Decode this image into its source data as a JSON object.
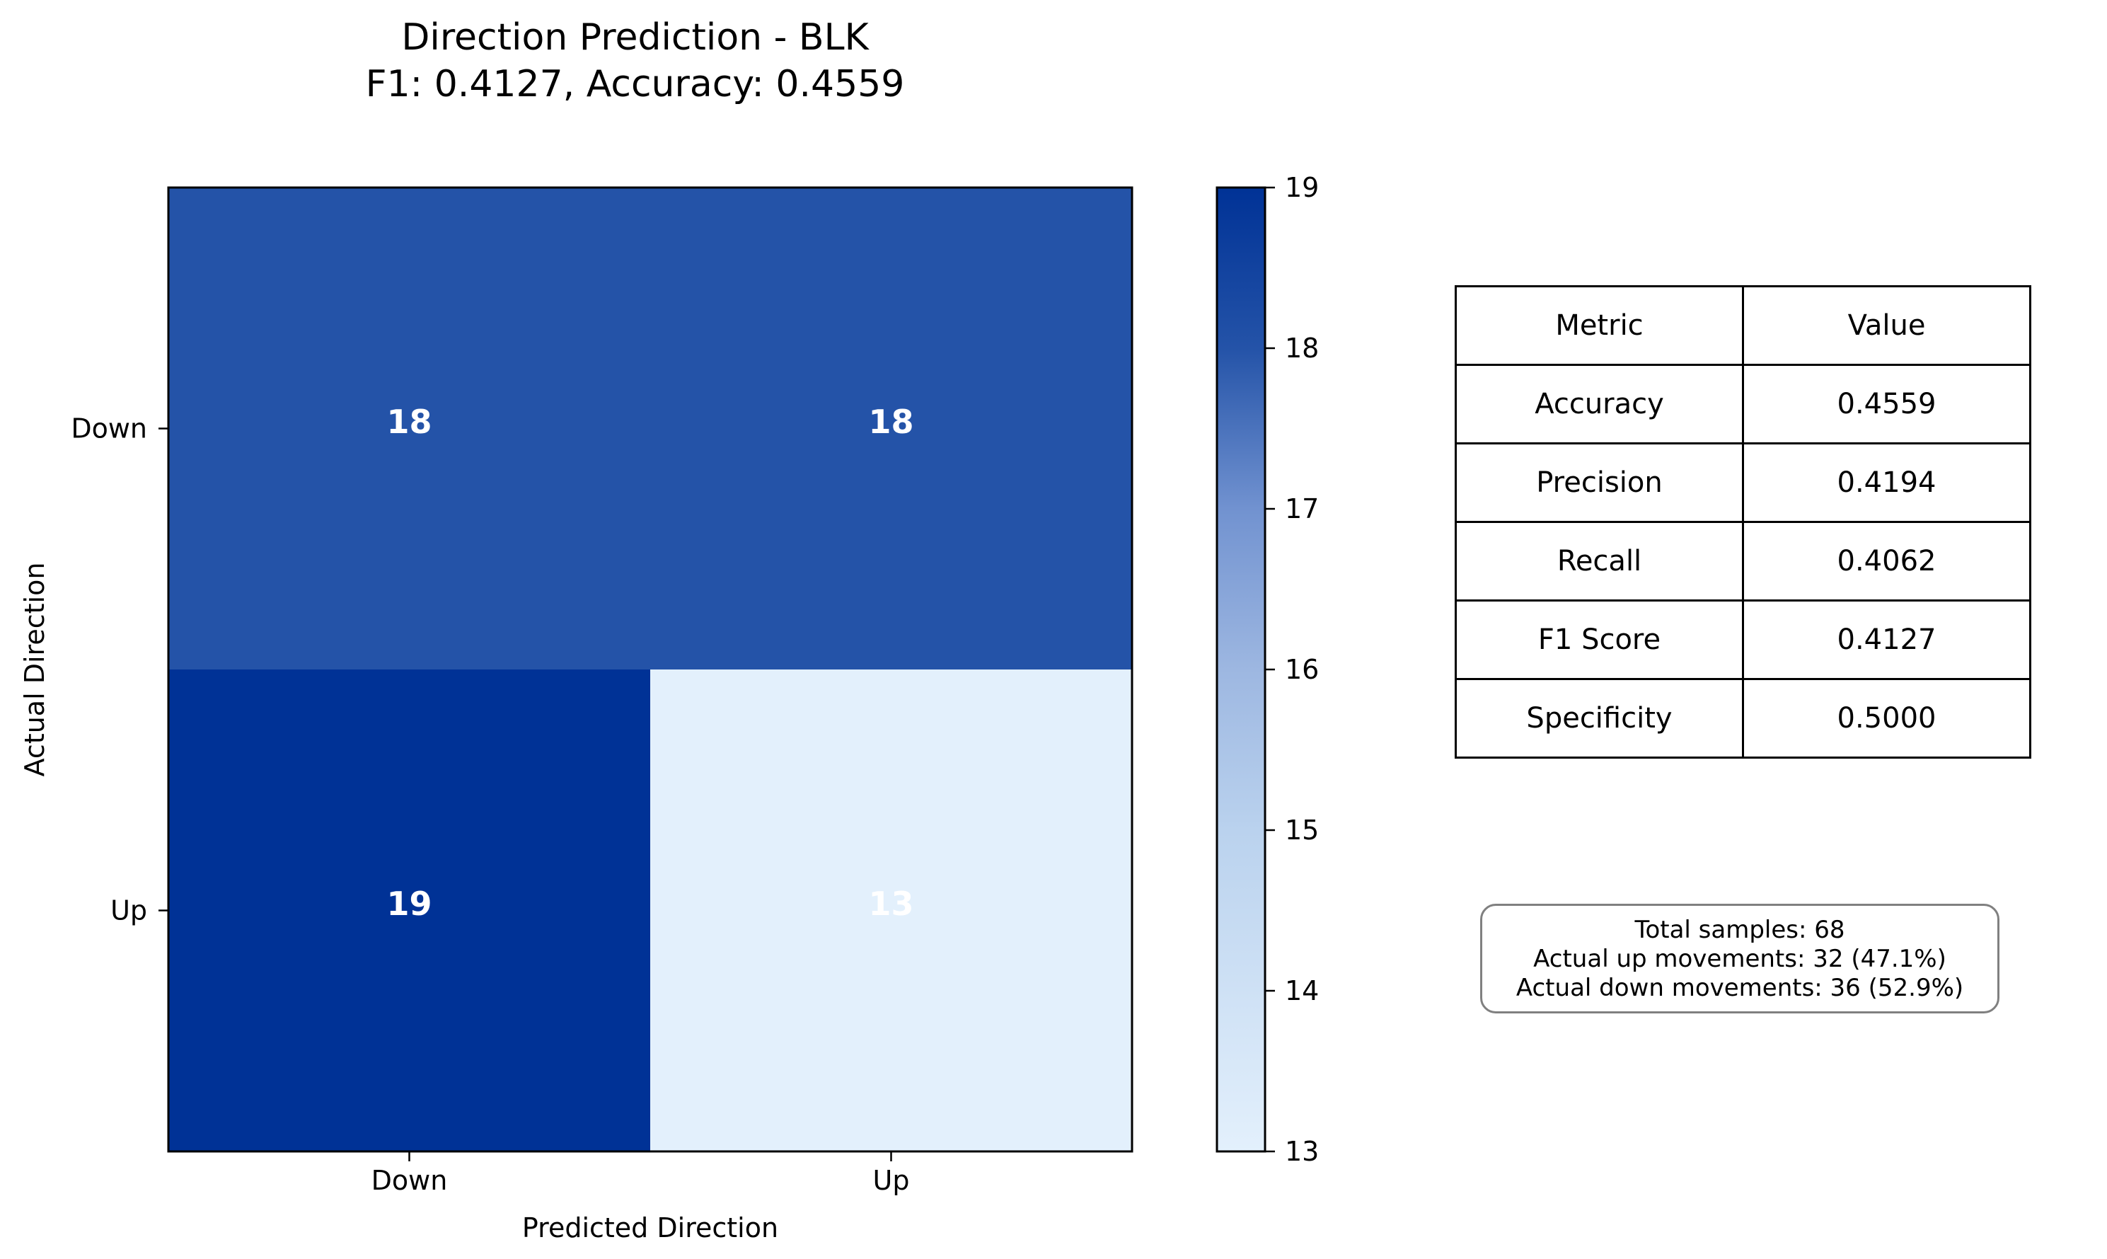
{
  "chart_data": {
    "type": "heatmap",
    "title_lines": [
      "Direction Prediction - BLK",
      "F1: 0.4127, Accuracy: 0.4559"
    ],
    "xlabel": "Predicted Direction",
    "ylabel": "Actual Direction",
    "x_categories": [
      "Down",
      "Up"
    ],
    "y_categories": [
      "Down",
      "Up"
    ],
    "matrix": [
      [
        18,
        18
      ],
      [
        19,
        13
      ]
    ],
    "colorbar": {
      "min": 13,
      "max": 19,
      "ticks": [
        13,
        14,
        15,
        16,
        17,
        18,
        19
      ]
    },
    "colors": {
      "low": "#e3f0fc",
      "high": "#003296",
      "cell_text": "#ffffff"
    }
  },
  "metrics_table": {
    "headers": [
      "Metric",
      "Value"
    ],
    "rows": [
      [
        "Accuracy",
        "0.4559"
      ],
      [
        "Precision",
        "0.4194"
      ],
      [
        "Recall",
        "0.4062"
      ],
      [
        "F1 Score",
        "0.4127"
      ],
      [
        "Specificity",
        "0.5000"
      ]
    ]
  },
  "summary": {
    "lines": [
      "Total samples: 68",
      "Actual up movements: 32 (47.1%)",
      "Actual down movements: 36 (52.9%)"
    ]
  }
}
